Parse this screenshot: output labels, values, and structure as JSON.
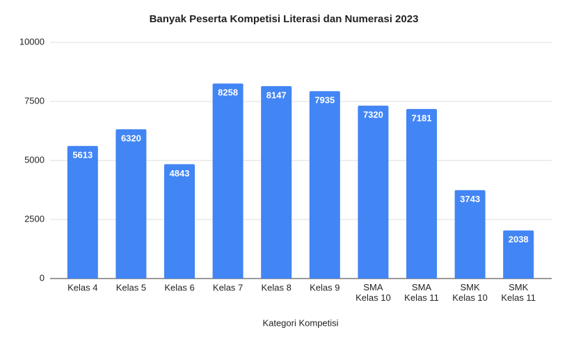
{
  "chart_data": {
    "type": "bar",
    "title": "Banyak Peserta Kompetisi Literasi dan Numerasi 2023",
    "x_label": "Kategori Kompetisi",
    "categories": [
      "Kelas 4",
      "Kelas 5",
      "Kelas 6",
      "Kelas 7",
      "Kelas 8",
      "Kelas 9",
      "SMA\nKelas 10",
      "SMA\nKelas 11",
      "SMK\nKelas 10",
      "SMK\nKelas 11"
    ],
    "values": [
      5613,
      6320,
      4843,
      8258,
      8147,
      7935,
      7320,
      7181,
      3743,
      2038
    ],
    "color": "#4285f4",
    "ylim": [
      0,
      10000
    ],
    "yticks": [
      0,
      2500,
      5000,
      7500,
      10000
    ],
    "grid": true
  }
}
